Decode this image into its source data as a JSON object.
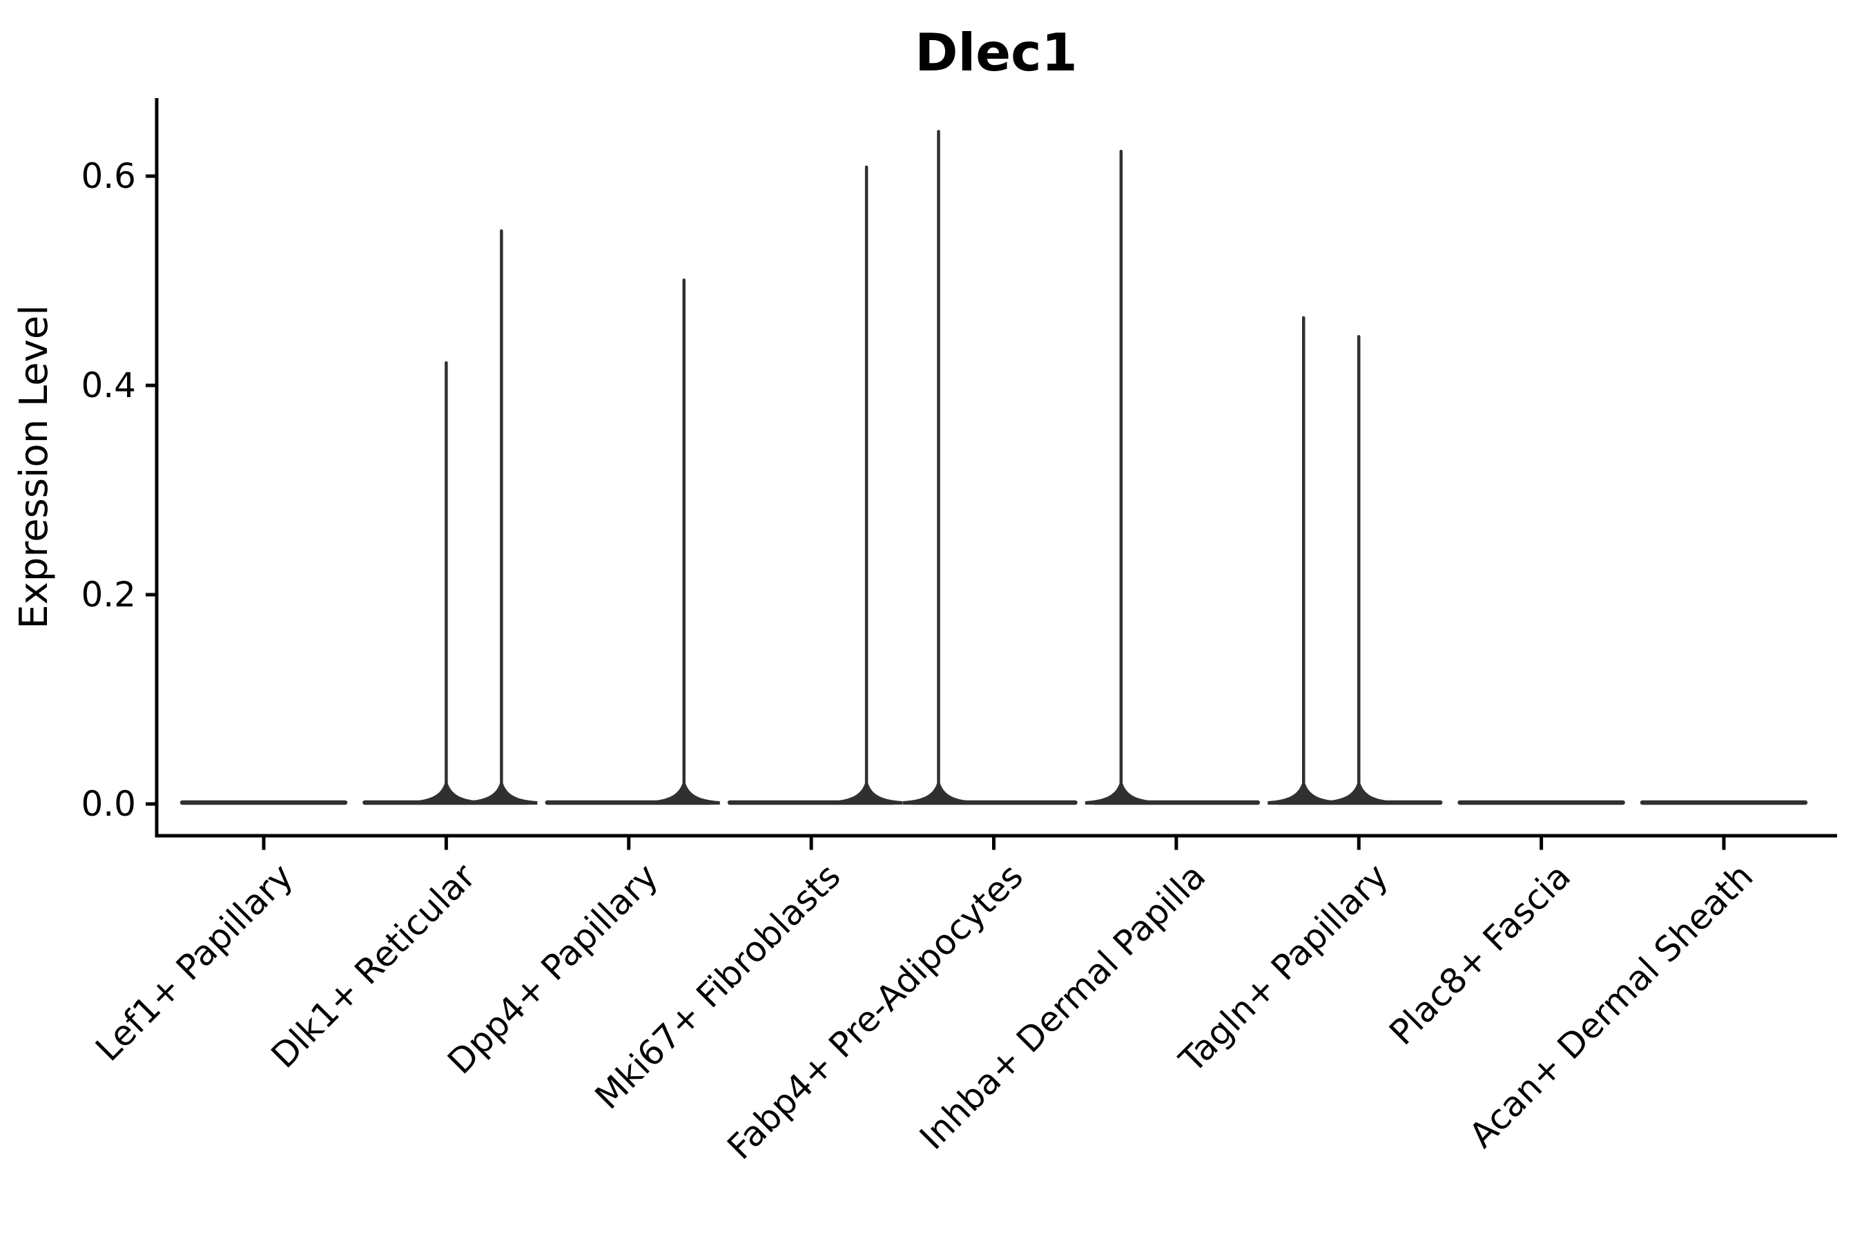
{
  "figure": {
    "title": "Dlec1",
    "y_axis_label": "Expression Level"
  },
  "chart_data": {
    "type": "violin",
    "title": "Dlec1",
    "xlabel": "",
    "ylabel": "Expression Level",
    "categories": [
      "Lef1+ Papillary",
      "Dlk1+ Reticular",
      "Dpp4+ Papillary",
      "Mki67+ Fibroblasts",
      "Fabp4+ Pre-Adipocytes",
      "Inhba+ Dermal Papilla",
      "Tagln+ Papillary",
      "Plac8+ Fascia",
      "Acan+ Dermal Sheath"
    ],
    "y_ticks": [
      0.0,
      0.2,
      0.4,
      0.6
    ],
    "ylim": [
      -0.03,
      0.67
    ],
    "grid": false,
    "legend": false,
    "x_tick_rotation_deg": 45,
    "violin_color": "#303030",
    "axis_color": "#000000",
    "violins": [
      {
        "category": "Lef1+ Papillary",
        "baseline_value": 0,
        "spikes": []
      },
      {
        "category": "Dlk1+ Reticular",
        "baseline_value": 0,
        "spikes": [
          {
            "dodge": "center",
            "max_expression": 0.423
          },
          {
            "dodge": "right",
            "max_expression": 0.549
          }
        ]
      },
      {
        "category": "Dpp4+ Papillary",
        "baseline_value": 0,
        "spikes": [
          {
            "dodge": "right",
            "max_expression": 0.502
          }
        ]
      },
      {
        "category": "Mki67+ Fibroblasts",
        "baseline_value": 0,
        "spikes": [
          {
            "dodge": "right",
            "max_expression": 0.61
          }
        ]
      },
      {
        "category": "Fabp4+ Pre-Adipocytes",
        "baseline_value": 0,
        "spikes": [
          {
            "dodge": "left",
            "max_expression": 0.644
          }
        ]
      },
      {
        "category": "Inhba+ Dermal Papilla",
        "baseline_value": 0,
        "spikes": [
          {
            "dodge": "left",
            "max_expression": 0.625
          }
        ]
      },
      {
        "category": "Tagln+ Papillary",
        "baseline_value": 0,
        "spikes": [
          {
            "dodge": "left",
            "max_expression": 0.466
          },
          {
            "dodge": "center",
            "max_expression": 0.448
          }
        ]
      },
      {
        "category": "Plac8+ Fascia",
        "baseline_value": 0,
        "spikes": []
      },
      {
        "category": "Acan+ Dermal Sheath",
        "baseline_value": 0,
        "spikes": []
      }
    ]
  }
}
